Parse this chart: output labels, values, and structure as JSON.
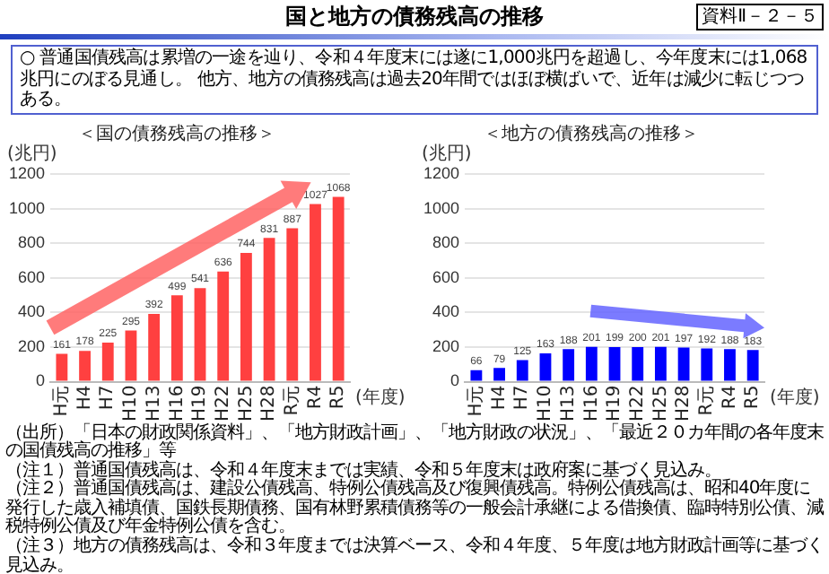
{
  "chart_data": [
    {
      "type": "other",
      "title": "国と地方の債務残高の推移",
      "subtitle": "○ 普通国債残高は累増の一途を辿り、令和４年度末には遂に1,000兆円を超過し、今年度末には1,068兆円にのぼる見通し。 他方、地方の債務残高は過去20年間ではほぼ横ばいで、近年は減少に転じつつある。",
      "annotations": [
        "資料Ⅱ－２－５",
        "（出所）「日本の財政関係資料」、「地方財政計画」、「地方財政の状況」、「最近２０カ年間の各年度末の国債残高の推移」等",
        "（注１）普通国債残高は、令和４年度末までは実績、令和５年度末は政府案に基づく見込み。",
        "（注２）普通国債残高は、建設公債残高、特例公債残高及び復興債残高。特例公債残高は、昭和40年度に発行した歳入補填債、国鉄長期債務、国有林野累積債務等の一般会計承継による借換債、臨時特別公債、減税特例公債及び年金特例公債を含む。",
        "（注３）地方の債務残高は、令和３年度までは決算ベース、令和４年度、５年度は地方財政計画等に基づく見込み。"
      ]
    },
    {
      "type": "bar",
      "title": "＜国の債務残高の推移＞",
      "xlabel": "(年度)",
      "ylabel": "(兆円)",
      "categories": [
        "H元",
        "H4",
        "H7",
        "H10",
        "H13",
        "H16",
        "H19",
        "H22",
        "H25",
        "H28",
        "R元",
        "R4",
        "R5"
      ],
      "values": [
        161,
        178,
        225,
        295,
        392,
        499,
        541,
        636,
        744,
        831,
        887,
        1027,
        1068
      ],
      "color": "#ff4040",
      "ylim": [
        0,
        1200
      ],
      "yticks": [
        0,
        200,
        400,
        600,
        800,
        1000,
        1200
      ],
      "grid": "y",
      "data_labels": true
    },
    {
      "type": "bar",
      "title": "＜地方の債務残高の推移＞",
      "xlabel": "(年度)",
      "ylabel": "(兆円)",
      "categories": [
        "H元",
        "H4",
        "H7",
        "H10",
        "H13",
        "H16",
        "H19",
        "H22",
        "H25",
        "H28",
        "R元",
        "R4",
        "R5"
      ],
      "values": [
        66,
        79,
        125,
        163,
        188,
        201,
        199,
        200,
        201,
        197,
        192,
        188,
        183
      ],
      "color": "#0000ff",
      "ylim": [
        0,
        1200
      ],
      "yticks": [
        0,
        200,
        400,
        600,
        800,
        1000,
        1200
      ],
      "grid": "y",
      "data_labels": true
    }
  ]
}
